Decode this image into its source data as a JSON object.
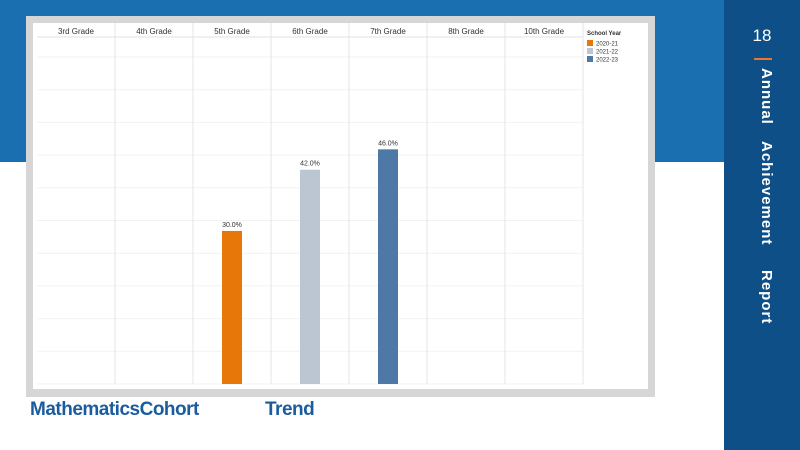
{
  "slide": {
    "page_number": "18",
    "side_title_words": [
      "Annual",
      "Achievement",
      "Report"
    ],
    "bottom_title_left": "MathematicsCohort",
    "bottom_title_right": "Trend"
  },
  "colors": {
    "band": "#1a6fb0",
    "sidepanel": "#0d4f86",
    "accent": "#e8782b",
    "title_text": "#1b5c9c"
  },
  "chart_data": {
    "type": "bar",
    "categories": [
      "3rd Grade",
      "4th Grade",
      "5th Grade",
      "6th Grade",
      "7th Grade",
      "8th Grade",
      "10th Grade"
    ],
    "legend": {
      "title": "School Year",
      "placement": "top-right",
      "entries": [
        {
          "name": "2020-21",
          "color": "#e8770a"
        },
        {
          "name": "2021-22",
          "color": "#bcc6d3"
        },
        {
          "name": "2022-23",
          "color": "#4e79a7"
        }
      ]
    },
    "series": [
      {
        "name": "2020-21",
        "color": "#e8770a",
        "values": [
          null,
          null,
          30.0,
          null,
          null,
          null,
          null
        ]
      },
      {
        "name": "2021-22",
        "color": "#bcc6d3",
        "values": [
          null,
          null,
          null,
          42.0,
          null,
          null,
          null
        ]
      },
      {
        "name": "2022-23",
        "color": "#4e79a7",
        "values": [
          null,
          null,
          null,
          null,
          46.0,
          null,
          null
        ]
      }
    ],
    "data_labels": [
      "30.0%",
      "42.0%",
      "46.0%"
    ],
    "ylim": [
      0,
      100
    ],
    "grid": true
  }
}
